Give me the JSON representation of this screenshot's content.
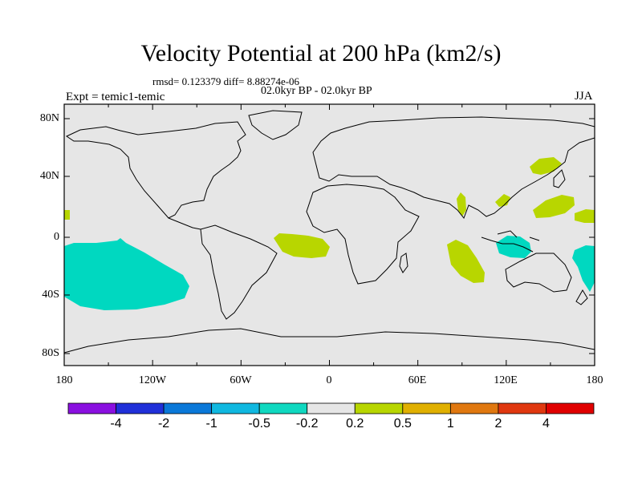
{
  "title": "Velocity Potential at 200 hPa (km2/s)",
  "stats": "rmsd= 0.123379 diff= 8.88274e-06",
  "period": "02.0kyr BP - 02.0kyr BP",
  "experiment": "Expt = temic1-temic",
  "season": "JJA",
  "map": {
    "lat_labels": [
      "80N",
      "40N",
      "0",
      "40S",
      "80S"
    ],
    "lon_labels": [
      "180",
      "120W",
      "60W",
      "0",
      "60E",
      "120E",
      "180"
    ],
    "background_color": "#e6e6e6",
    "negative_anomaly_color": "#00d8c0",
    "positive_anomaly_color": "#b8d600"
  },
  "colorbar": {
    "labels": [
      "-4",
      "-2",
      "-1",
      "-0.5",
      "-0.2",
      "0.2",
      "0.5",
      "1",
      "2",
      "4"
    ],
    "colors": [
      "#8a10e0",
      "#2030d8",
      "#0a78d8",
      "#10b8e0",
      "#10d8c0",
      "#e6e6e6",
      "#b8d600",
      "#e0b000",
      "#e07810",
      "#e03810",
      "#e00000"
    ]
  }
}
